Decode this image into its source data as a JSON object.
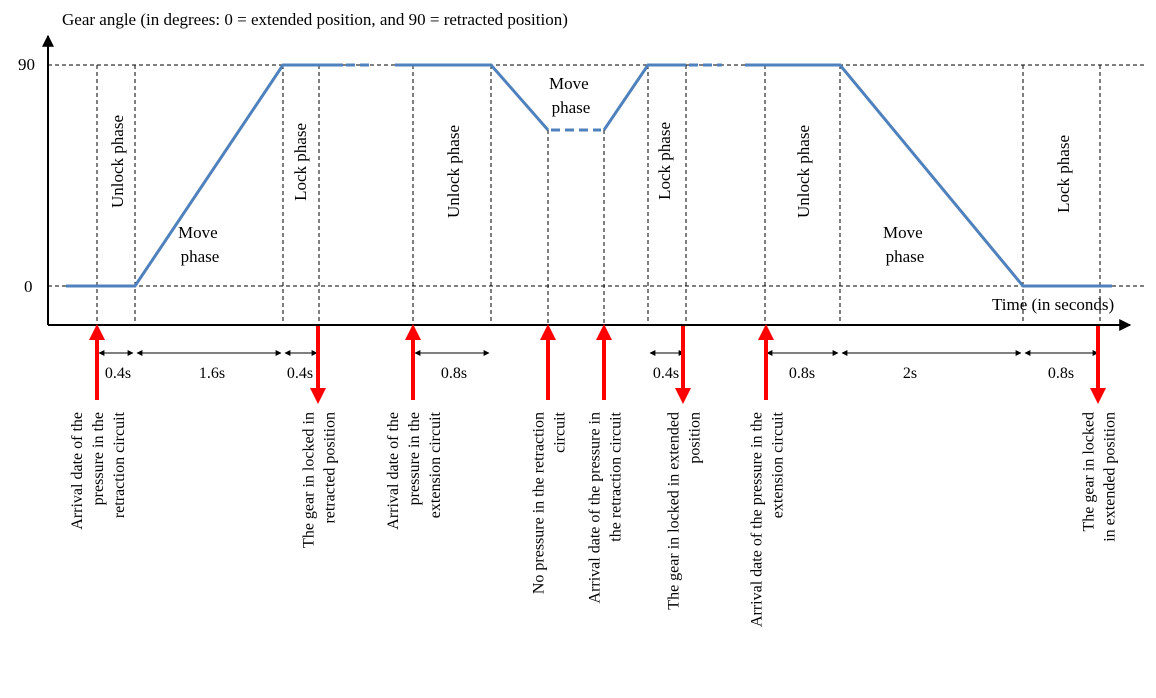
{
  "diagram": {
    "y_axis_title": "Gear angle (in degrees: 0 = extended position, and 90 = retracted position)",
    "x_axis_title": "Time (in seconds)",
    "y_ticks": [
      {
        "label": "90",
        "value": 90
      },
      {
        "label": "0",
        "value": 0
      }
    ],
    "phases": [
      {
        "label": "Unlock phase"
      },
      {
        "label": "Move phase"
      },
      {
        "label": "Lock phase"
      },
      {
        "label": "Unlock phase"
      },
      {
        "label": "Move phase"
      },
      {
        "label": "Lock phase"
      },
      {
        "label": "Unlock phase"
      },
      {
        "label": "Move phase"
      },
      {
        "label": "Lock phase"
      }
    ],
    "durations": [
      {
        "label": "0.4s"
      },
      {
        "label": "1.6s"
      },
      {
        "label": "0.4s"
      },
      {
        "label": "0.8s"
      },
      {
        "label": "0.4s"
      },
      {
        "label": "0.8s"
      },
      {
        "label": "2s"
      },
      {
        "label": "0.8s"
      }
    ],
    "events": [
      {
        "lines": [
          "Arrival date of the",
          "pressure in the",
          "retraction circuit"
        ],
        "direction": "up"
      },
      {
        "lines": [
          "The gear in locked in",
          "retracted position"
        ],
        "direction": "down"
      },
      {
        "lines": [
          "Arrival date of the",
          "pressure in the",
          "extension circuit"
        ],
        "direction": "up"
      },
      {
        "lines": [
          "No pressure in the retraction",
          "circuit"
        ],
        "direction": "up"
      },
      {
        "lines": [
          "Arrival date of the pressure in",
          "the retraction circuit"
        ],
        "direction": "up"
      },
      {
        "lines": [
          "The gear in locked in extended",
          "position"
        ],
        "direction": "down"
      },
      {
        "lines": [
          "Arrival date of the pressure in the",
          "extension circuit"
        ],
        "direction": "up"
      },
      {
        "lines": [
          "The gear in locked",
          "in extended position"
        ],
        "direction": "down"
      }
    ],
    "colors": {
      "curve": "#4f81bd",
      "arrow": "#ff0000",
      "lines": "#000000"
    }
  }
}
